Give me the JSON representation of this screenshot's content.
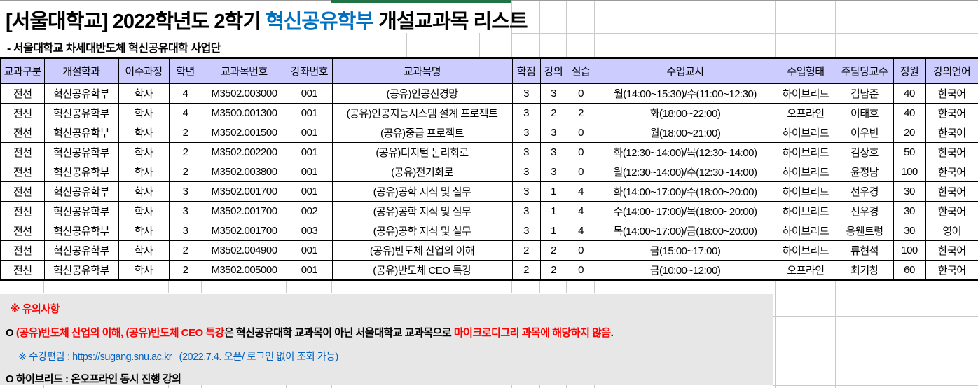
{
  "page": {
    "title_prefix": "[서울대학교] 2022학년도 2학기 ",
    "title_highlight": "혁신공유학부",
    "title_suffix": " 개설교과목 리스트",
    "subtitle": "- 서울대학교 차세대반도체 혁신공유대학 사업단"
  },
  "colors": {
    "header_bg": "#ccccff",
    "title_highlight": "#0070c0",
    "link": "#0563c1",
    "warning_red": "#ff0000",
    "top_accent_green": "#217346",
    "notes_bg": "#e7e7e7",
    "gridline": "#c9c9c9"
  },
  "table": {
    "headers": [
      "교과구분",
      "개설학과",
      "이수과정",
      "학년",
      "교과목번호",
      "강좌번호",
      "교과목명",
      "학점",
      "강의",
      "실습",
      "수업교시",
      "수업형태",
      "주담당교수",
      "정원",
      "강의언어"
    ],
    "rows": [
      [
        "전선",
        "혁신공유학부",
        "학사",
        "4",
        "M3502.003000",
        "001",
        "(공유)인공신경망",
        "3",
        "3",
        "0",
        "월(14:00~15:30)/수(11:00~12:30)",
        "하이브리드",
        "김남준",
        "40",
        "한국어"
      ],
      [
        "전선",
        "혁신공유학부",
        "학사",
        "4",
        "M3500.001300",
        "001",
        "(공유)인공지능시스템 설계 프로젝트",
        "3",
        "2",
        "2",
        "화(18:00~22:00)",
        "오프라인",
        "이태호",
        "40",
        "한국어"
      ],
      [
        "전선",
        "혁신공유학부",
        "학사",
        "2",
        "M3502.001500",
        "001",
        "(공유)중급 프로젝트",
        "3",
        "3",
        "0",
        "월(18:00~21:00)",
        "하이브리드",
        "이우빈",
        "20",
        "한국어"
      ],
      [
        "전선",
        "혁신공유학부",
        "학사",
        "2",
        "M3502.002200",
        "001",
        "(공유)디지털 논리회로",
        "3",
        "3",
        "0",
        "화(12:30~14:00)/목(12:30~14:00)",
        "하이브리드",
        "김상호",
        "50",
        "한국어"
      ],
      [
        "전선",
        "혁신공유학부",
        "학사",
        "2",
        "M3502.003800",
        "001",
        "(공유)전기회로",
        "3",
        "3",
        "0",
        "월(12:30~14:00)/수(12:30~14:00)",
        "하이브리드",
        "윤정남",
        "100",
        "한국어"
      ],
      [
        "전선",
        "혁신공유학부",
        "학사",
        "3",
        "M3502.001700",
        "001",
        "(공유)공학 지식 및 실무",
        "3",
        "1",
        "4",
        "화(14:00~17:00)/수(18:00~20:00)",
        "하이브리드",
        "선우경",
        "30",
        "한국어"
      ],
      [
        "전선",
        "혁신공유학부",
        "학사",
        "3",
        "M3502.001700",
        "002",
        "(공유)공학 지식 및 실무",
        "3",
        "1",
        "4",
        "수(14:00~17:00)/목(18:00~20:00)",
        "하이브리드",
        "선우경",
        "30",
        "한국어"
      ],
      [
        "전선",
        "혁신공유학부",
        "학사",
        "3",
        "M3502.001700",
        "003",
        "(공유)공학 지식 및 실무",
        "3",
        "1",
        "4",
        "목(14:00~17:00)/금(18:00~20:00)",
        "하이브리드",
        "응웬트렁",
        "30",
        "영어"
      ],
      [
        "전선",
        "혁신공유학부",
        "학사",
        "2",
        "M3502.004900",
        "001",
        "(공유)반도체 산업의 이해",
        "2",
        "2",
        "0",
        "금(15:00~17:00)",
        "하이브리드",
        "류현석",
        "100",
        "한국어"
      ],
      [
        "전선",
        "혁신공유학부",
        "학사",
        "2",
        "M3502.005000",
        "001",
        "(공유)반도체 CEO 특강",
        "2",
        "2",
        "0",
        "금(10:00~12:00)",
        "오프라인",
        "최기창",
        "60",
        "한국어"
      ]
    ]
  },
  "notes": {
    "heading": "※ 유의사항",
    "warning_prefix": "O ",
    "warning_red1": "(공유)반도체 산업의 이해, (공유)반도체 CEO 특강",
    "warning_mid": "은 혁신공유대학 교과목이 아닌 서울대학교 교과목으로 ",
    "warning_red2": "마이크로디그리 과목에 해당하지 않음",
    "warning_suffix": ".",
    "link_text": "※ 수강편람 : https://sugang.snu.ac.kr   (2022.7.4. 오픈/ 로그인 없이 조회 가능)",
    "hybrid_note": "O 하이브리드 : 온오프라인 동시 진행 강의"
  }
}
